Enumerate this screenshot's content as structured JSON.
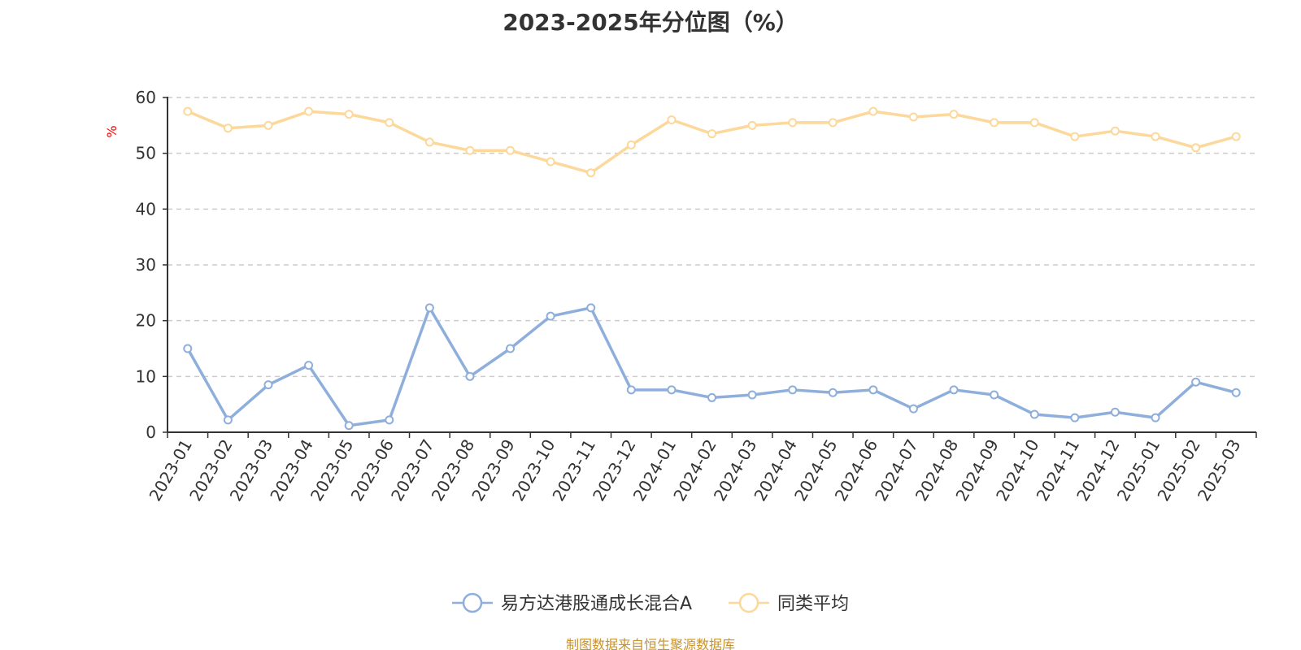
{
  "chart_data": {
    "type": "line",
    "title": "2023-2025年分位图（%）",
    "ylabel": "%",
    "xlabel": "",
    "ylim": [
      0,
      60
    ],
    "yticks": [
      0,
      10,
      20,
      30,
      40,
      50,
      60
    ],
    "grid": true,
    "legend_position": "bottom-center",
    "categories": [
      "2023-01",
      "2023-02",
      "2023-03",
      "2023-04",
      "2023-05",
      "2023-06",
      "2023-07",
      "2023-08",
      "2023-09",
      "2023-10",
      "2023-11",
      "2023-12",
      "2024-01",
      "2024-02",
      "2024-03",
      "2024-04",
      "2024-05",
      "2024-06",
      "2024-07",
      "2024-08",
      "2024-09",
      "2024-10",
      "2024-11",
      "2024-12",
      "2025-01",
      "2025-02",
      "2025-03"
    ],
    "series": [
      {
        "name": "易方达港股通成长混合A",
        "color": "#8eaedb",
        "values": [
          15,
          2.2,
          8.5,
          12,
          1.2,
          2.2,
          22.3,
          10,
          15,
          20.8,
          22.3,
          7.6,
          7.6,
          6.2,
          6.7,
          7.6,
          7.1,
          7.6,
          4.2,
          7.6,
          6.7,
          3.2,
          2.6,
          3.6,
          2.6,
          9,
          7.1
        ]
      },
      {
        "name": "同类平均",
        "color": "#fcd89a",
        "values": [
          57.5,
          54.5,
          55,
          57.5,
          57,
          55.5,
          52,
          50.5,
          50.5,
          48.5,
          46.5,
          51.5,
          56,
          53.5,
          55,
          55.5,
          55.5,
          57.5,
          56.5,
          57,
          55.5,
          55.5,
          53,
          54,
          53,
          51,
          53
        ]
      }
    ],
    "source": "制图数据来自恒生聚源数据库"
  }
}
